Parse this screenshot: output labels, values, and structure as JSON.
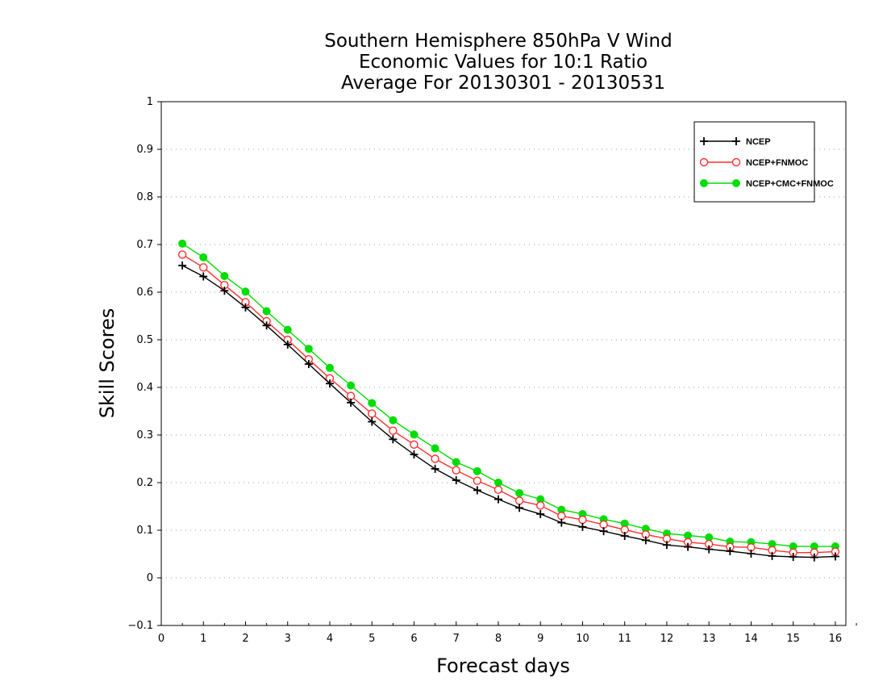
{
  "chart_data": {
    "type": "line",
    "title_lines": [
      "Southern Hemisphere 850hPa V Wind",
      "Economic Values for 10:1 Ratio",
      "Average For 20130301 - 20130531"
    ],
    "xlabel": "Forecast days",
    "ylabel": "Skill Scores",
    "xlim": [
      0,
      16.25
    ],
    "ylim": [
      -0.1,
      1
    ],
    "x_ticks": [
      "0",
      "1",
      "2",
      "3",
      "4",
      "5",
      "6",
      "7",
      "8",
      "9",
      "10",
      "11",
      "12",
      "13",
      "14",
      "15",
      "16"
    ],
    "y_ticks": [
      "−0.1",
      "0",
      "0.1",
      "0.2",
      "0.3",
      "0.4",
      "0.5",
      "0.6",
      "0.7",
      "0.8",
      "0.9",
      "1"
    ],
    "grid": "horizontal dotted",
    "legend_position": "top-right",
    "x": [
      0.5,
      1,
      1.5,
      2,
      2.5,
      3,
      3.5,
      4,
      4.5,
      5,
      5.5,
      6,
      6.5,
      7,
      7.5,
      8,
      8.5,
      9,
      9.5,
      10,
      10.5,
      11,
      11.5,
      12,
      12.5,
      13,
      13.5,
      14,
      14.5,
      15,
      15.5,
      16
    ],
    "series": [
      {
        "name": "NCEP",
        "color": "#000000",
        "marker": "plus",
        "values": [
          0.656,
          0.633,
          0.603,
          0.568,
          0.53,
          0.49,
          0.449,
          0.408,
          0.368,
          0.328,
          0.291,
          0.259,
          0.229,
          0.205,
          0.184,
          0.165,
          0.147,
          0.134,
          0.116,
          0.107,
          0.098,
          0.088,
          0.079,
          0.069,
          0.065,
          0.06,
          0.056,
          0.051,
          0.046,
          0.044,
          0.043,
          0.045
        ]
      },
      {
        "name": "NCEP+FNMOC",
        "color": "#ff3030",
        "marker": "open-circle",
        "values": [
          0.679,
          0.652,
          0.615,
          0.579,
          0.539,
          0.5,
          0.459,
          0.419,
          0.382,
          0.345,
          0.309,
          0.28,
          0.25,
          0.226,
          0.204,
          0.185,
          0.162,
          0.152,
          0.13,
          0.122,
          0.112,
          0.101,
          0.091,
          0.082,
          0.075,
          0.071,
          0.065,
          0.064,
          0.058,
          0.053,
          0.053,
          0.055
        ]
      },
      {
        "name": "NCEP+CMC+FNMOC",
        "color": "#00dd00",
        "marker": "filled-circle",
        "values": [
          0.702,
          0.673,
          0.634,
          0.601,
          0.56,
          0.521,
          0.481,
          0.441,
          0.404,
          0.367,
          0.331,
          0.301,
          0.272,
          0.243,
          0.224,
          0.2,
          0.178,
          0.165,
          0.143,
          0.134,
          0.123,
          0.114,
          0.103,
          0.093,
          0.089,
          0.085,
          0.076,
          0.075,
          0.071,
          0.066,
          0.066,
          0.066
        ]
      }
    ]
  }
}
